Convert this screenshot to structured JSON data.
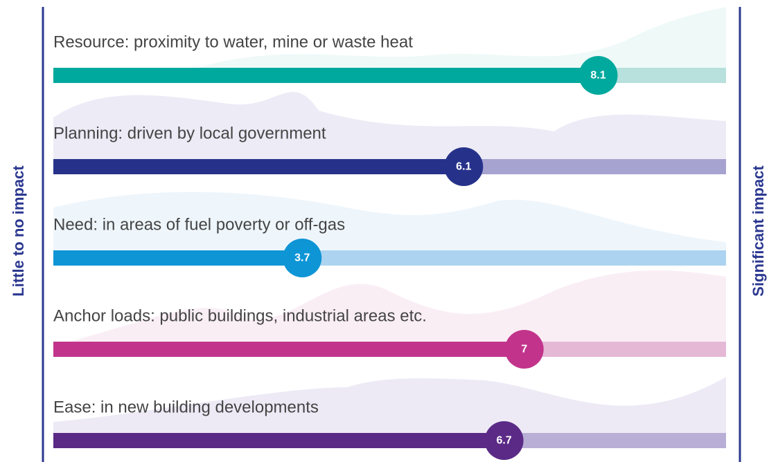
{
  "chart_data": {
    "type": "bar",
    "orientation": "horizontal",
    "categories": [
      "Resource: proximity to water, mine or waste heat",
      "Planning: driven by local government",
      "Need: in areas of fuel poverty or off-gas",
      "Anchor loads: public buildings, industrial areas etc.",
      "Ease: in new building developments"
    ],
    "values": [
      8.1,
      6.1,
      3.7,
      7,
      6.7
    ],
    "colors": [
      "#00a99d",
      "#26328a",
      "#0d95d6",
      "#c2348c",
      "#5b2a86"
    ],
    "track_colors": [
      "#b8e0dc",
      "#a7a3d1",
      "#acd3f0",
      "#e5b8d6",
      "#b8aed6"
    ],
    "xlim": [
      0,
      10
    ],
    "xlabel_left": "Little to no impact",
    "xlabel_right": "Significant impact"
  }
}
